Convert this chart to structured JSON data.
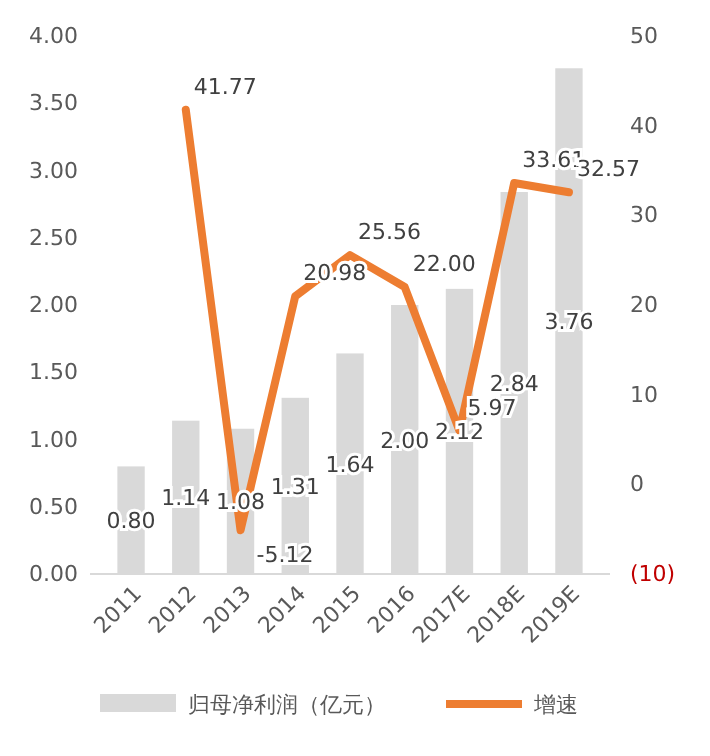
{
  "chart_data": {
    "type": "bar",
    "categories": [
      "2011",
      "2012",
      "2013",
      "2014",
      "2015",
      "2016",
      "2017E",
      "2018E",
      "2019E"
    ],
    "series": [
      {
        "name": "归母净利润（亿元）",
        "color": "#d9d9d9",
        "values": [
          0.8,
          1.14,
          1.08,
          1.31,
          1.64,
          2.0,
          2.12,
          2.84,
          3.76
        ],
        "value_labels": [
          "0.80",
          "1.14",
          "1.08",
          "1.31",
          "1.64",
          "2.00",
          "2.12",
          "2.84",
          "3.76"
        ]
      },
      {
        "name": "增速",
        "type": "line",
        "axis": "y2",
        "color": "#ed7d31",
        "values": [
          null,
          41.77,
          -5.12,
          20.98,
          25.56,
          22.0,
          5.97,
          33.61,
          32.57
        ],
        "value_labels": [
          null,
          "41.77",
          "-5.12",
          "20.98",
          "25.56",
          "22.00",
          "5.97",
          "33.61",
          "32.57"
        ]
      }
    ],
    "ylim": [
      0,
      4
    ],
    "yticks": [
      {
        "value": 0,
        "label": "0.00"
      },
      {
        "value": 0.5,
        "label": "0.50"
      },
      {
        "value": 1,
        "label": "1.00"
      },
      {
        "value": 1.5,
        "label": "1.50"
      },
      {
        "value": 2,
        "label": "2.00"
      },
      {
        "value": 2.5,
        "label": "2.50"
      },
      {
        "value": 3,
        "label": "3.00"
      },
      {
        "value": 3.5,
        "label": "3.50"
      },
      {
        "value": 4,
        "label": "4.00"
      }
    ],
    "y2lim": [
      -10,
      50
    ],
    "y2ticks": [
      {
        "value": -10,
        "label": "(10)"
      },
      0,
      10,
      20,
      30,
      40,
      50
    ],
    "legend": "bottom",
    "grid": false,
    "marker": "none",
    "line_style": "solid"
  }
}
